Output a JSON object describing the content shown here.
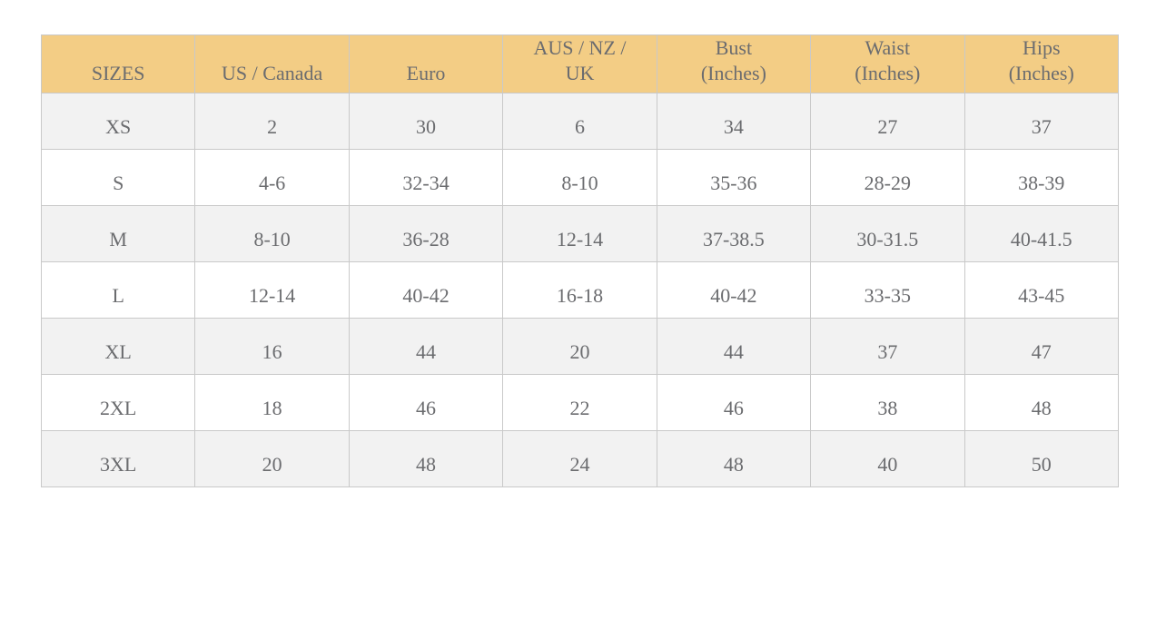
{
  "colors": {
    "header_bg": "#f3cd85",
    "row_alt_bg": "#f2f2f2",
    "row_bg": "#ffffff",
    "border": "#c9c9c9",
    "text": "#6b6c6f"
  },
  "table": {
    "columns": [
      "SIZES",
      "US / Canada",
      "Euro",
      "AUS / NZ /\nUK",
      "Bust\n(Inches)",
      "Waist\n(Inches)",
      "Hips\n(Inches)"
    ],
    "rows": [
      {
        "size": "XS",
        "us": "2",
        "euro": "30",
        "aus": "6",
        "bust": "34",
        "waist": "27",
        "hips": "37"
      },
      {
        "size": "S",
        "us": "4-6",
        "euro": "32-34",
        "aus": "8-10",
        "bust": "35-36",
        "waist": "28-29",
        "hips": "38-39"
      },
      {
        "size": "M",
        "us": "8-10",
        "euro": "36-28",
        "aus": "12-14",
        "bust": "37-38.5",
        "waist": "30-31.5",
        "hips": "40-41.5"
      },
      {
        "size": "L",
        "us": "12-14",
        "euro": "40-42",
        "aus": "16-18",
        "bust": "40-42",
        "waist": "33-35",
        "hips": "43-45"
      },
      {
        "size": "XL",
        "us": "16",
        "euro": "44",
        "aus": "20",
        "bust": "44",
        "waist": "37",
        "hips": "47"
      },
      {
        "size": "2XL",
        "us": "18",
        "euro": "46",
        "aus": "22",
        "bust": "46",
        "waist": "38",
        "hips": "48"
      },
      {
        "size": "3XL",
        "us": "20",
        "euro": "48",
        "aus": "24",
        "bust": "48",
        "waist": "40",
        "hips": "50"
      }
    ]
  }
}
